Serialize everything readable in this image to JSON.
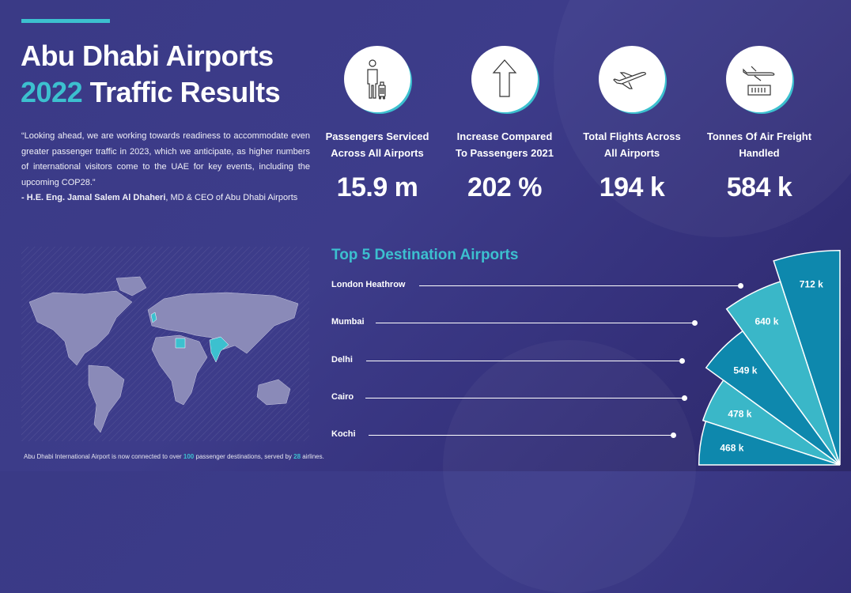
{
  "header": {
    "title_line1": "Abu Dhabi Airports",
    "title_year": "2022",
    "title_line2_rest": "Traffic Results"
  },
  "quote": {
    "text": "“Looking ahead, we are working towards readiness to accommodate even greater passenger traffic in 2023, which we anticipate, as higher numbers of international visitors come to the UAE for key events, including the upcoming COP28.”",
    "author": "- H.E. Eng. Jamal Salem Al Dhaheri",
    "role": ",  MD & CEO of Abu Dhabi Airports"
  },
  "stats": [
    {
      "icon": "passenger-luggage-icon",
      "label_line1": "Passengers Serviced",
      "label_line2": "Across All Airports",
      "value": "15.9 m"
    },
    {
      "icon": "arrow-up-icon",
      "label_line1": "Increase Compared",
      "label_line2": "To Passengers 2021",
      "value": "202 %"
    },
    {
      "icon": "airplane-takeoff-icon",
      "label_line1": "Total Flights Across",
      "label_line2": "All Airports",
      "value": "194 k"
    },
    {
      "icon": "air-freight-icon",
      "label_line1": "Tonnes Of Air Freight",
      "label_line2": "Handled",
      "value": "584 k"
    }
  ],
  "map": {
    "highlighted": [
      "United Kingdom",
      "Egypt",
      "India"
    ]
  },
  "footnote": {
    "pre": "Abu Dhabi International Airport is now connected to over ",
    "destinations": "100",
    "mid": " passenger destinations, served by ",
    "airlines": "28",
    "post": " airlines."
  },
  "colors": {
    "accent": "#3cc0cf",
    "dark_teal": "#0e88ad",
    "light_teal": "#3ab7c8",
    "background": "#3a3a86"
  },
  "chart_data": {
    "type": "radial-bar",
    "title": "Top 5 Destination Airports",
    "categories": [
      "London Heathrow",
      "Mumbai",
      "Delhi",
      "Cairo",
      "Kochi"
    ],
    "values": [
      712,
      640,
      549,
      478,
      468
    ],
    "labels": [
      "712 k",
      "640 k",
      "549 k",
      "478 k",
      "468 k"
    ],
    "unit": "k passengers"
  }
}
